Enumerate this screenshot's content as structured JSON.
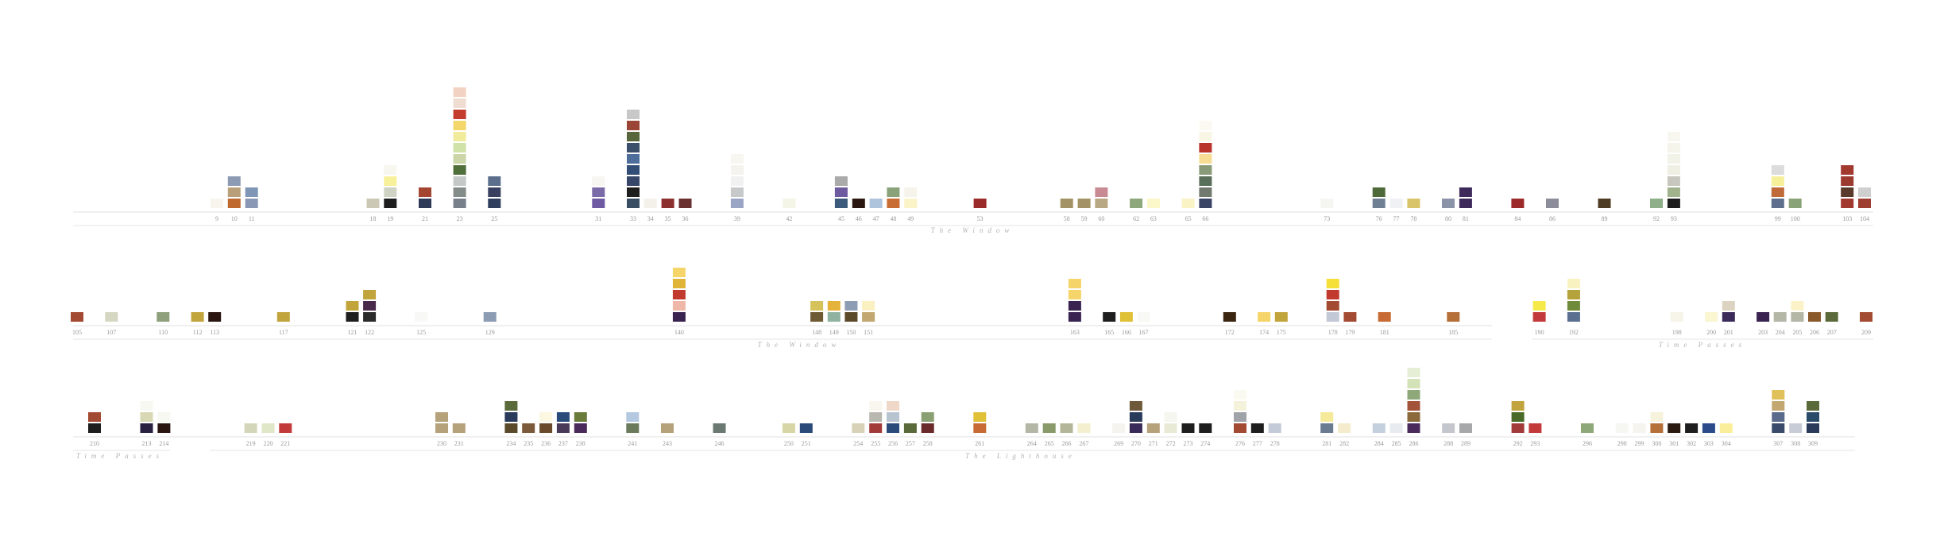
{
  "chart_data": {
    "type": "bar",
    "rows": [
      {
        "columns": [
          {
            "page": "9",
            "colors": [
              "#f7f5ee"
            ]
          },
          {
            "page": "10",
            "colors": [
              "#c0692f",
              "#b9a07a",
              "#8d9ab3"
            ]
          },
          {
            "page": "11",
            "colors": [
              "#8b98b5",
              "#7f96b6"
            ]
          },
          {
            "page": "18",
            "colors": [
              "#ccc8b6"
            ]
          },
          {
            "page": "19",
            "colors": [
              "#1e1e1e",
              "#cfd3c3",
              "#f8f19b",
              "#f7f6ef"
            ]
          },
          {
            "page": "21",
            "colors": [
              "#2e3a58",
              "#a44531"
            ]
          },
          {
            "page": "23",
            "colors": [
              "#77808b",
              "#848c8a",
              "#c4c9c7",
              "#516f3a",
              "#cad6a7",
              "#d1e2a8",
              "#f1ec9c",
              "#f4d76b",
              "#c43c2d",
              "#f0ddd2",
              "#f2d3c3"
            ]
          },
          {
            "page": "25",
            "colors": [
              "#2f3e5c",
              "#393f5e",
              "#5b6f8d"
            ]
          },
          {
            "page": "31",
            "colors": [
              "#6e5aa3",
              "#7a6aa8",
              "#f7f6f2"
            ]
          },
          {
            "page": "33",
            "colors": [
              "#3a4e63",
              "#1e1e1e",
              "#37476a",
              "#334e76",
              "#4d6d9b",
              "#3b4f6a",
              "#58663b",
              "#9a4536",
              "#c8c8c8"
            ]
          },
          {
            "page": "34",
            "colors": [
              "#f3f1ea"
            ]
          },
          {
            "page": "35",
            "colors": [
              "#8b2f2f"
            ]
          },
          {
            "page": "36",
            "colors": [
              "#6a2f2f"
            ]
          },
          {
            "page": "39",
            "colors": [
              "#9aa4c4",
              "#c7c8c9",
              "#f1f1f1",
              "#f4f3ee",
              "#f7f6f1"
            ]
          },
          {
            "page": "42",
            "colors": [
              "#f4f5e6"
            ]
          },
          {
            "page": "45",
            "colors": [
              "#3b5a7c",
              "#6e5a9e",
              "#a9aaa9"
            ]
          },
          {
            "page": "46",
            "colors": [
              "#2a1810"
            ]
          },
          {
            "page": "47",
            "colors": [
              "#aec4dd"
            ]
          },
          {
            "page": "48",
            "colors": [
              "#c86d33",
              "#8aa27a"
            ]
          },
          {
            "page": "49",
            "colors": [
              "#fbf4c8",
              "#f6f4ea"
            ]
          },
          {
            "page": "53",
            "colors": [
              "#9b2a2a"
            ]
          },
          {
            "page": "58",
            "colors": [
              "#a39266"
            ]
          },
          {
            "page": "59",
            "colors": [
              "#a39266"
            ]
          },
          {
            "page": "60",
            "colors": [
              "#b8a884",
              "#c98b93"
            ]
          },
          {
            "page": "62",
            "colors": [
              "#8fa77c"
            ]
          },
          {
            "page": "63",
            "colors": [
              "#fbf7c8"
            ]
          },
          {
            "page": "65",
            "colors": [
              "#faf3c5"
            ]
          },
          {
            "page": "66",
            "colors": [
              "#3a4566",
              "#727a70",
              "#5a6f5a",
              "#899a78",
              "#f7dc93",
              "#b9342a",
              "#faf6e6",
              "#fbf9f2"
            ]
          },
          {
            "page": "73",
            "colors": [
              "#f5f5f2"
            ]
          },
          {
            "page": "76",
            "colors": [
              "#6f8094",
              "#4f6a3a"
            ]
          },
          {
            "page": "77",
            "colors": [
              "#f0f1f5"
            ]
          },
          {
            "page": "78",
            "colors": [
              "#d9c46a"
            ]
          },
          {
            "page": "80",
            "colors": [
              "#8b93a8"
            ]
          },
          {
            "page": "81",
            "colors": [
              "#3d2a5a",
              "#3d2a5a"
            ]
          },
          {
            "page": "84",
            "colors": [
              "#9c2a2a"
            ]
          },
          {
            "page": "86",
            "colors": [
              "#8b8e9a"
            ]
          },
          {
            "page": "89",
            "colors": [
              "#4e3d24"
            ]
          },
          {
            "page": "92",
            "colors": [
              "#8fae8a"
            ]
          },
          {
            "page": "93",
            "colors": [
              "#1e1e1e",
              "#a0b38c",
              "#c7c7bd",
              "#efefe3",
              "#f1f2e8",
              "#f4f4ea",
              "#f7f7f0"
            ]
          },
          {
            "page": "99",
            "colors": [
              "#5d6f8c",
              "#c06a3a",
              "#f7f09a",
              "#dcdcdc"
            ]
          },
          {
            "page": "100",
            "colors": [
              "#8aa278"
            ]
          },
          {
            "page": "103",
            "colors": [
              "#a2392f",
              "#5a3a2a",
              "#9d3a2f",
              "#a2392f"
            ]
          },
          {
            "page": "104",
            "colors": [
              "#9e3e31",
              "#cfcfcf"
            ]
          }
        ],
        "sections": [
          {
            "label": "The Window"
          }
        ]
      },
      {
        "columns": [
          {
            "page": "105",
            "colors": [
              "#a34a32"
            ]
          },
          {
            "page": "107",
            "colors": [
              "#d6d7c2"
            ]
          },
          {
            "page": "110",
            "colors": [
              "#8fa07c"
            ]
          },
          {
            "page": "112",
            "colors": [
              "#c2a43d"
            ]
          },
          {
            "page": "113",
            "colors": [
              "#2a1510"
            ]
          },
          {
            "page": "117",
            "colors": [
              "#c2a43d"
            ]
          },
          {
            "page": "121",
            "colors": [
              "#1e1e1e",
              "#c2a43d"
            ]
          },
          {
            "page": "122",
            "colors": [
              "#2a2a2a",
              "#4a2a4a",
              "#c2a43d"
            ]
          },
          {
            "page": "125",
            "colors": [
              "#f8f8f6"
            ]
          },
          {
            "page": "129",
            "colors": [
              "#8b9cb3"
            ]
          },
          {
            "page": "140",
            "colors": [
              "#3a2350",
              "#efb7a8",
              "#c23a2d",
              "#e0b537",
              "#f5d56a"
            ]
          },
          {
            "page": "148",
            "colors": [
              "#6e5a33",
              "#d6c25a"
            ]
          },
          {
            "page": "149",
            "colors": [
              "#8fb3a0",
              "#e6b33a"
            ]
          },
          {
            "page": "150",
            "colors": [
              "#5a4a2a",
              "#8b9cb3"
            ]
          },
          {
            "page": "151",
            "colors": [
              "#c2a870",
              "#fbf0c2"
            ]
          },
          {
            "page": "163",
            "colors": [
              "#3a2350",
              "#3a2350",
              "#f5d56a",
              "#f5d56a"
            ]
          },
          {
            "page": "165",
            "colors": [
              "#1e1e1e"
            ]
          },
          {
            "page": "166",
            "colors": [
              "#e0c037"
            ]
          },
          {
            "page": "167",
            "colors": [
              "#f8f8f4"
            ]
          },
          {
            "page": "172",
            "colors": [
              "#3a2510"
            ]
          },
          {
            "page": "174",
            "colors": [
              "#f5d56a"
            ]
          },
          {
            "page": "175",
            "colors": [
              "#c2a43d"
            ]
          },
          {
            "page": "178",
            "colors": [
              "#c3c8d6",
              "#a34a32",
              "#c23a2d",
              "#f5e03a"
            ]
          },
          {
            "page": "179",
            "colors": [
              "#a34a32"
            ]
          },
          {
            "page": "181",
            "colors": [
              "#c86a33"
            ]
          },
          {
            "page": "185",
            "colors": [
              "#b5703a"
            ]
          },
          {
            "page": "190",
            "colors": [
              "#c23a3a",
              "#f6ea4a"
            ]
          },
          {
            "page": "192",
            "colors": [
              "#5a7090",
              "#6e8a3a",
              "#b5a23a",
              "#f8f2c0"
            ]
          },
          {
            "page": "198",
            "colors": [
              "#f6f4e8"
            ]
          },
          {
            "page": "200",
            "colors": [
              "#fbf6d2"
            ]
          },
          {
            "page": "201",
            "colors": [
              "#3a2a5a",
              "#dcd4c0"
            ]
          },
          {
            "page": "203",
            "colors": [
              "#3a2350"
            ]
          },
          {
            "page": "204",
            "colors": [
              "#b4b6a6"
            ]
          },
          {
            "page": "205",
            "colors": [
              "#b4b6a6",
              "#fbf2c8"
            ]
          },
          {
            "page": "206",
            "colors": [
              "#8a5a2a"
            ]
          },
          {
            "page": "207",
            "colors": [
              "#5a6a3a"
            ]
          },
          {
            "page": "209",
            "colors": [
              "#a34a32"
            ]
          }
        ],
        "sections": [
          {
            "label": "The Window"
          },
          {
            "label": "Time Passes"
          }
        ]
      },
      {
        "columns": [
          {
            "page": "210",
            "colors": [
              "#1e1e1e",
              "#a34a32"
            ]
          },
          {
            "page": "213",
            "colors": [
              "#2a2140",
              "#d8d8b4",
              "#f8f8f2"
            ]
          },
          {
            "page": "214",
            "colors": [
              "#2a1510",
              "#f8f8f2"
            ]
          },
          {
            "page": "219",
            "colors": [
              "#d4d6ba"
            ]
          },
          {
            "page": "220",
            "colors": [
              "#e0e6c8"
            ]
          },
          {
            "page": "221",
            "colors": [
              "#c23a3a"
            ]
          },
          {
            "page": "230",
            "colors": [
              "#b5a27a",
              "#b5a27a"
            ]
          },
          {
            "page": "231",
            "colors": [
              "#b5a27a"
            ]
          },
          {
            "page": "234",
            "colors": [
              "#5a4a2a",
              "#2a3a5a",
              "#5a6a3a"
            ]
          },
          {
            "page": "235",
            "colors": [
              "#7a5a3a"
            ]
          },
          {
            "page": "236",
            "colors": [
              "#6a4a2a",
              "#fbf7e0"
            ]
          },
          {
            "page": "237",
            "colors": [
              "#4a3a5a",
              "#2a4a7a"
            ]
          },
          {
            "page": "238",
            "colors": [
              "#4a2a5a",
              "#6a7a3a"
            ]
          },
          {
            "page": "241",
            "colors": [
              "#6a7a5a",
              "#b4c8e0"
            ]
          },
          {
            "page": "243",
            "colors": [
              "#b5a27a"
            ]
          },
          {
            "page": "246",
            "colors": [
              "#6a7a72"
            ]
          },
          {
            "page": "250",
            "colors": [
              "#d6d6a6"
            ]
          },
          {
            "page": "251",
            "colors": [
              "#2a4a7a"
            ]
          },
          {
            "page": "254",
            "colors": [
              "#d8d2b8"
            ]
          },
          {
            "page": "255",
            "colors": [
              "#a33a3a",
              "#b8b8b0",
              "#f8f6ee"
            ]
          },
          {
            "page": "256",
            "colors": [
              "#2a4a7a",
              "#b8c4d0",
              "#f0d8c8"
            ]
          },
          {
            "page": "257",
            "colors": [
              "#5a6a3a"
            ]
          },
          {
            "page": "258",
            "colors": [
              "#6a2a2a",
              "#8aa072"
            ]
          },
          {
            "page": "261",
            "colors": [
              "#c86a33",
              "#e0c037"
            ]
          },
          {
            "page": "264",
            "colors": [
              "#b4b6a6"
            ]
          },
          {
            "page": "265",
            "colors": [
              "#8a9a6a"
            ]
          },
          {
            "page": "266",
            "colors": [
              "#b4b69a"
            ]
          },
          {
            "page": "267",
            "colors": [
              "#f4f0cf"
            ]
          },
          {
            "page": "269",
            "colors": [
              "#f6f4ee"
            ]
          },
          {
            "page": "270",
            "colors": [
              "#3a2a5a",
              "#2a3a5a",
              "#6e5a3a"
            ]
          },
          {
            "page": "271",
            "colors": [
              "#b5a27a"
            ]
          },
          {
            "page": "272",
            "colors": [
              "#e8ead6",
              "#f6f6f0"
            ]
          },
          {
            "page": "273",
            "colors": [
              "#1e1e1e"
            ]
          },
          {
            "page": "274",
            "colors": [
              "#1e1e1e"
            ]
          },
          {
            "page": "276",
            "colors": [
              "#a34a32",
              "#a0a4a8",
              "#f4f2da",
              "#fbfaf0"
            ]
          },
          {
            "page": "277",
            "colors": [
              "#1e1e1e"
            ]
          },
          {
            "page": "278",
            "colors": [
              "#c3cbd8"
            ]
          },
          {
            "page": "281",
            "colors": [
              "#6a7a90",
              "#f4ea9a"
            ]
          },
          {
            "page": "282",
            "colors": [
              "#f4eccc"
            ]
          },
          {
            "page": "284",
            "colors": [
              "#c4d0de"
            ]
          },
          {
            "page": "285",
            "colors": [
              "#e8ebf0"
            ]
          },
          {
            "page": "286",
            "colors": [
              "#4a2a5a",
              "#8a6a3a",
              "#a3533a",
              "#8fa87a",
              "#d4e2b8",
              "#e6eed6"
            ]
          },
          {
            "page": "288",
            "colors": [
              "#c3c6cc"
            ]
          },
          {
            "page": "289",
            "colors": [
              "#a6a8aa"
            ]
          },
          {
            "page": "292",
            "colors": [
              "#a33a3a",
              "#4a6a2a",
              "#c2a43d"
            ]
          },
          {
            "page": "293",
            "colors": [
              "#c23a3a"
            ]
          },
          {
            "page": "296",
            "colors": [
              "#8fa87a"
            ]
          },
          {
            "page": "298",
            "colors": [
              "#f6f6f2"
            ]
          },
          {
            "page": "299",
            "colors": [
              "#f6f4ee"
            ]
          },
          {
            "page": "300",
            "colors": [
              "#b5703a",
              "#f6f2dc"
            ]
          },
          {
            "page": "301",
            "colors": [
              "#2a1a10"
            ]
          },
          {
            "page": "302",
            "colors": [
              "#1e1e1e"
            ]
          },
          {
            "page": "303",
            "colors": [
              "#2a4a8a"
            ]
          },
          {
            "page": "304",
            "colors": [
              "#faee9a"
            ]
          },
          {
            "page": "307",
            "colors": [
              "#3a4a6a",
              "#5a6a8a",
              "#c2a870",
              "#e0c05a"
            ]
          },
          {
            "page": "308",
            "colors": [
              "#c8ccd6"
            ]
          },
          {
            "page": "309",
            "colors": [
              "#2a3a5a",
              "#2a4a6a",
              "#5a6a3a"
            ]
          }
        ],
        "sections": [
          {
            "label": "Time Passes"
          },
          {
            "label": "The Lighthouse"
          }
        ]
      }
    ]
  }
}
